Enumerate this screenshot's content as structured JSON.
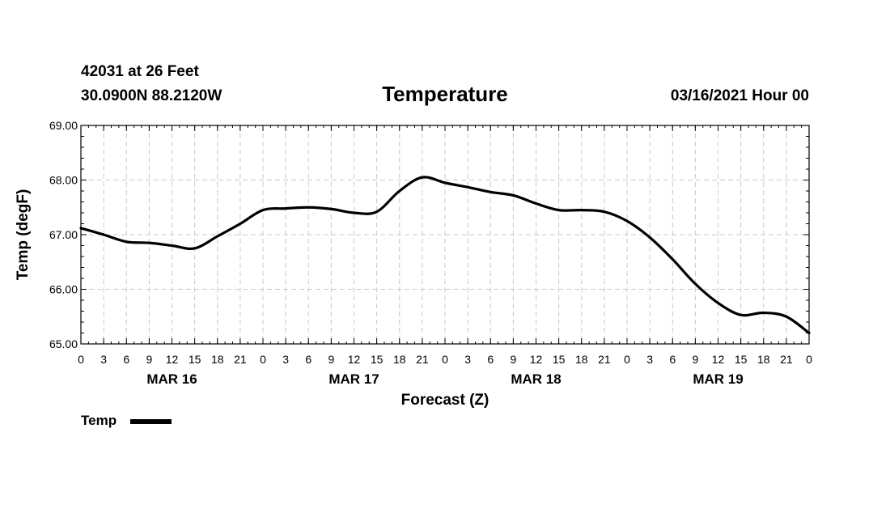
{
  "header": {
    "station": "42031 at 26 Feet",
    "location": "30.0900N 88.2120W",
    "run": "03/16/2021 Hour 00"
  },
  "chart_data": {
    "type": "line",
    "title": "Temperature",
    "xlabel": "Forecast (Z)",
    "ylabel": "Temp (degF)",
    "xlim": [
      0,
      96
    ],
    "ylim": [
      65,
      69
    ],
    "y_ticks": [
      "65.00",
      "66.00",
      "67.00",
      "68.00",
      "69.00"
    ],
    "x_tick_hours": [
      0,
      3,
      6,
      9,
      12,
      15,
      18,
      21,
      24,
      27,
      30,
      33,
      36,
      39,
      42,
      45,
      48,
      51,
      54,
      57,
      60,
      63,
      66,
      69,
      72,
      75,
      78,
      81,
      84,
      87,
      90,
      93,
      96
    ],
    "x_tick_labels": [
      "0",
      "3",
      "6",
      "9",
      "12",
      "15",
      "18",
      "21",
      "0",
      "3",
      "6",
      "9",
      "12",
      "15",
      "18",
      "21",
      "0",
      "3",
      "6",
      "9",
      "12",
      "15",
      "18",
      "21",
      "0",
      "3",
      "6",
      "9",
      "12",
      "15",
      "18",
      "21",
      "0"
    ],
    "date_labels": [
      {
        "text": "MAR 16",
        "hour": 12
      },
      {
        "text": "MAR 17",
        "hour": 36
      },
      {
        "text": "MAR 18",
        "hour": 60
      },
      {
        "text": "MAR 19",
        "hour": 84
      }
    ],
    "grid": true,
    "legend_position": "bottom-left",
    "series": [
      {
        "name": "Temp",
        "color": "#000000",
        "x": [
          0,
          3,
          6,
          9,
          12,
          15,
          18,
          21,
          24,
          27,
          30,
          33,
          36,
          39,
          42,
          45,
          48,
          51,
          54,
          57,
          60,
          63,
          66,
          69,
          72,
          75,
          78,
          81,
          84,
          87,
          90,
          93,
          96
        ],
        "values": [
          67.12,
          67.0,
          66.87,
          66.85,
          66.8,
          66.75,
          66.97,
          67.2,
          67.45,
          67.48,
          67.5,
          67.47,
          67.4,
          67.42,
          67.8,
          68.05,
          67.95,
          67.87,
          67.78,
          67.72,
          67.57,
          67.45,
          67.45,
          67.42,
          67.25,
          66.95,
          66.55,
          66.1,
          65.75,
          65.53,
          65.57,
          65.5,
          65.2
        ]
      }
    ]
  }
}
